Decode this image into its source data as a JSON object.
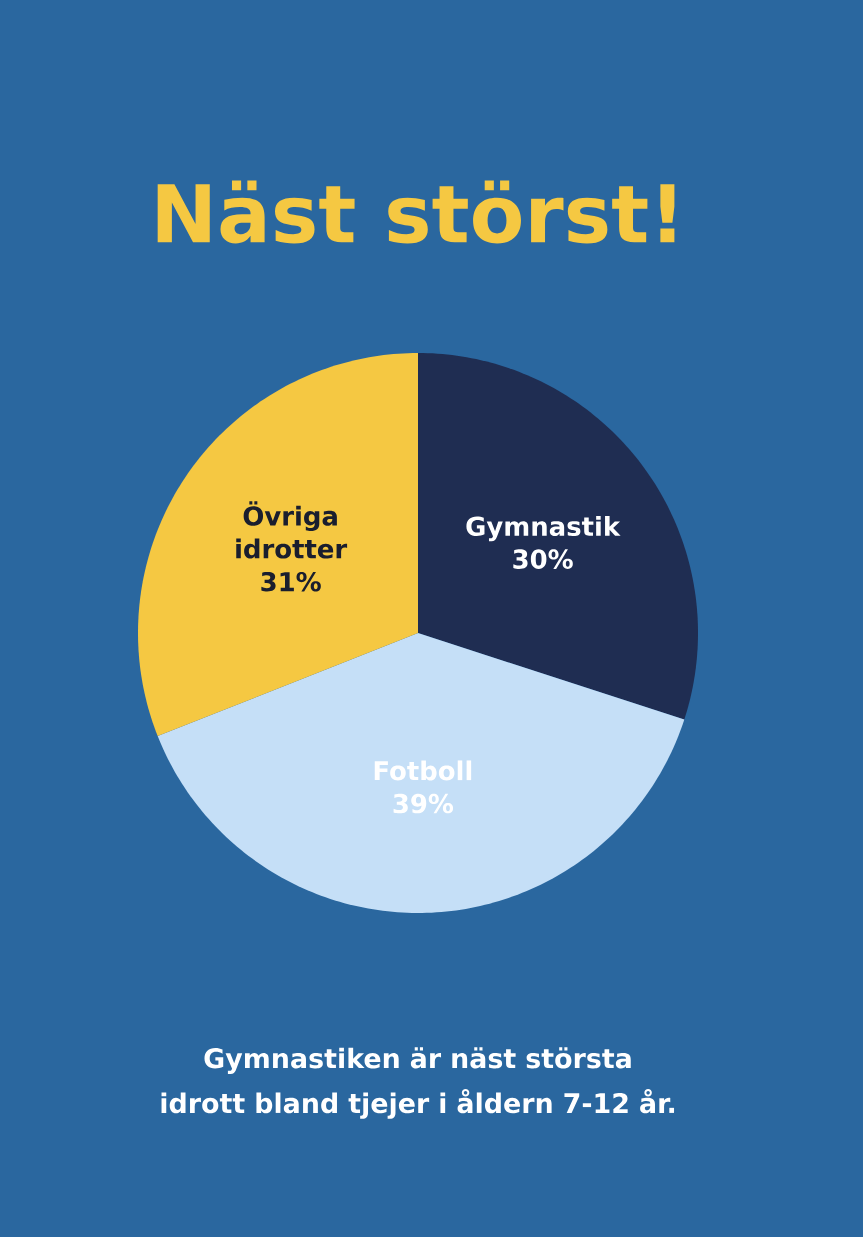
{
  "chart_data": {
    "type": "pie",
    "title": "Näst störst!",
    "categories": [
      "Gymnastik",
      "Fotboll",
      "Övriga idrotter"
    ],
    "values": [
      30,
      39,
      31
    ],
    "value_labels": [
      "30%",
      "39%",
      "31%"
    ],
    "colors": [
      "#1f2d52",
      "#c5dff7",
      "#f5c842"
    ],
    "annotations": [
      "Gymnastiken är näst största idrott bland tjejer i åldern 7-12 år."
    ]
  }
}
